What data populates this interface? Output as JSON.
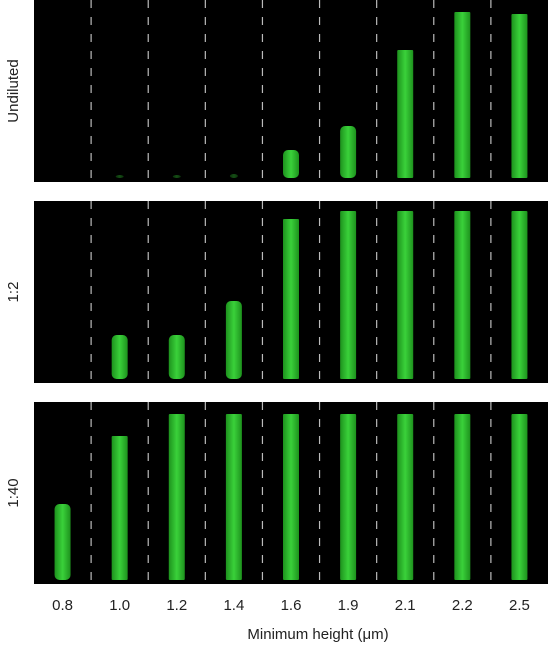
{
  "rows": [
    {
      "label": "Undiluted"
    },
    {
      "label": "1:2"
    },
    {
      "label": "1:40"
    }
  ],
  "columns": [
    "0.8",
    "1.0",
    "1.2",
    "1.4",
    "1.6",
    "1.9",
    "2.1",
    "2.2",
    "2.5"
  ],
  "x_axis_label": "Minimum height (μm)"
}
